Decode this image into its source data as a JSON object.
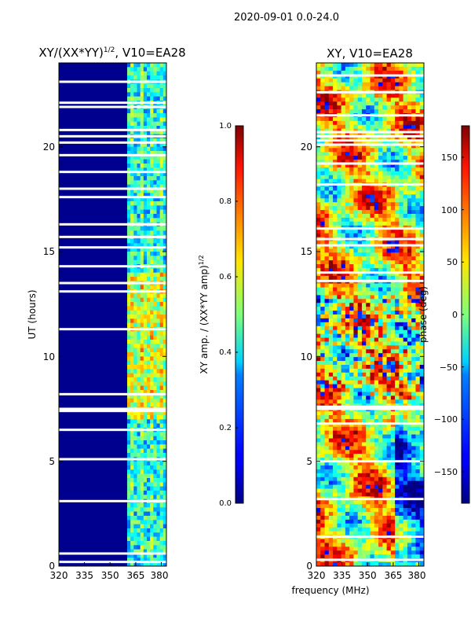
{
  "figure_title": "2020-09-01 0.0-24.0",
  "chart_data": [
    {
      "type": "heatmap",
      "title": "XY/(XX*YY)^{1/2}, V10=EA28",
      "title_text": "XY/(XX*YY)",
      "title_sup": "1/2",
      "title_suffix": ", V10=EA28",
      "ylabel": "UT (hours)",
      "xlim": [
        320,
        383
      ],
      "ylim": [
        0,
        24
      ],
      "xticks": [
        "320",
        "335",
        "350",
        "365",
        "380"
      ],
      "xtick_values": [
        320,
        335,
        350,
        365,
        380
      ],
      "yticks": [
        "0",
        "5",
        "10",
        "15",
        "20"
      ],
      "ytick_values": [
        0,
        5,
        10,
        15,
        20
      ],
      "colormap": "jet",
      "value_range": [
        0.0,
        1.0
      ],
      "colorbar": {
        "label": "XY amp. / (XX*YY amp)^{1/2}",
        "label_text": "XY amp. / (XX*YY amp)",
        "label_sup": "1/2",
        "ticks": [
          "0.0",
          "0.2",
          "0.4",
          "0.6",
          "0.8",
          "1.0"
        ],
        "tick_values": [
          0.0,
          0.2,
          0.4,
          0.6,
          0.8,
          1.0
        ]
      },
      "band_start_mhz": 360,
      "gap_hours": [
        0.2,
        0.6,
        3.1,
        5.1,
        6.5,
        7.4,
        7.5,
        8.2,
        11.3,
        13.1,
        13.5,
        14.3,
        15.2,
        15.7,
        16.3,
        17.6,
        18.0,
        18.8,
        19.6,
        20.2,
        20.5,
        20.8,
        21.9,
        22.1,
        23.1
      ]
    },
    {
      "type": "heatmap",
      "title": "XY, V10=EA28",
      "xlim": [
        320,
        383
      ],
      "ylim": [
        0,
        24
      ],
      "xticks": [
        "320",
        "335",
        "350",
        "365",
        "380"
      ],
      "xtick_values": [
        320,
        335,
        350,
        365,
        380
      ],
      "yticks": [
        "0",
        "5",
        "10",
        "15",
        "20"
      ],
      "ytick_values": [
        0,
        5,
        10,
        15,
        20
      ],
      "colormap": "jet",
      "value_range": [
        -180,
        180
      ],
      "colorbar": {
        "label": "phase (deg)",
        "ticks": [
          "−150",
          "−100",
          "−50",
          "0",
          "50",
          "100",
          "150"
        ],
        "tick_values": [
          -150,
          -100,
          -50,
          0,
          50,
          100,
          150
        ]
      },
      "gap_hours": [
        0.3,
        1.4,
        3.2,
        5.0,
        6.8,
        7.5,
        7.6,
        13.6,
        14.0,
        15.3,
        15.6,
        16.1,
        18.2,
        19.2,
        20.1,
        20.3,
        20.5,
        20.7,
        21.5,
        22.6,
        23.4
      ]
    }
  ],
  "xlabel_shared": "frequency (MHz)"
}
